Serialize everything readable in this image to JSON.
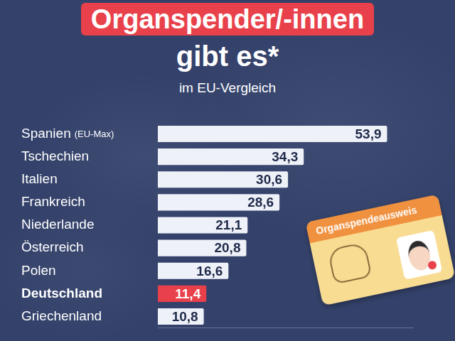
{
  "chart_data": {
    "type": "bar",
    "orientation": "horizontal",
    "title": [
      "Organspender/-innen",
      "gibt es*"
    ],
    "subtitle": "im EU-Vergleich",
    "categories": [
      "Spanien",
      "Tschechien",
      "Italien",
      "Frankreich",
      "Niederlande",
      "Österreich",
      "Polen",
      "Deutschland",
      "Griechenland"
    ],
    "values": [
      53.9,
      34.3,
      30.6,
      28.6,
      21.1,
      20.8,
      16.6,
      11.4,
      10.8
    ],
    "value_labels": [
      "53,9",
      "34,3",
      "30,6",
      "28,6",
      "21,1",
      "20,8",
      "16,6",
      "11,4",
      "10,8"
    ],
    "colors": [
      "#eef1f8",
      "#eef1f8",
      "#eef1f8",
      "#eef1f8",
      "#eef1f8",
      "#eef1f8",
      "#eef1f8",
      "#e8414b",
      "#eef1f8"
    ],
    "annotations": [
      {
        "text": "(EU-Max)",
        "category": "Spanien"
      }
    ],
    "card": {
      "title": "Organspendeausweis"
    },
    "xlim": [
      0,
      60
    ],
    "grid": false,
    "data_labels": true,
    "tick_labels": "y"
  }
}
